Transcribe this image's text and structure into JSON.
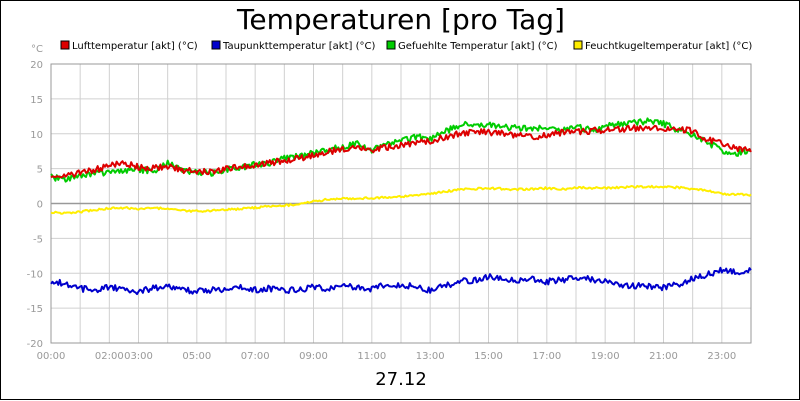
{
  "chart_data": {
    "type": "line",
    "title": "Temperaturen [pro Tag]",
    "ylabel": "°C",
    "xlabel": "27.12",
    "ylim": [
      -20,
      20
    ],
    "xlim": [
      0,
      24
    ],
    "y_ticks": [
      "20",
      "15",
      "10",
      "5",
      "0",
      "-5",
      "-10",
      "-15",
      "-20"
    ],
    "y_tick_values": [
      20,
      15,
      10,
      5,
      0,
      -5,
      -10,
      -15,
      -20
    ],
    "x_ticks": [
      "00:00",
      "02:00",
      "03:00",
      "05:00",
      "07:00",
      "09:00",
      "11:00",
      "13:00",
      "15:00",
      "17:00",
      "19:00",
      "21:00",
      "23:00"
    ],
    "x_tick_hours": [
      0,
      2,
      3,
      5,
      7,
      9,
      11,
      13,
      15,
      17,
      19,
      21,
      23
    ],
    "grid": true,
    "legend_position": "top",
    "series": [
      {
        "name": "Lufttemperatur [akt] (°C)",
        "color": "#dd0000",
        "x": [
          0,
          0.5,
          1,
          1.5,
          2,
          2.5,
          3,
          3.5,
          4,
          4.5,
          5,
          5.5,
          6,
          6.5,
          7,
          7.5,
          8,
          8.5,
          9,
          9.5,
          10,
          10.5,
          11,
          11.5,
          12,
          12.5,
          13,
          13.5,
          14,
          14.5,
          15,
          15.5,
          16,
          16.5,
          17,
          17.5,
          18,
          18.5,
          19,
          19.5,
          20,
          20.5,
          21,
          21.5,
          22,
          22.5,
          23,
          23.5,
          24
        ],
        "values": [
          4.2,
          3.9,
          4.4,
          4.8,
          5.5,
          5.8,
          5.2,
          5.0,
          5.3,
          4.8,
          4.7,
          4.6,
          5.0,
          5.3,
          5.6,
          5.8,
          6.2,
          6.5,
          6.9,
          7.4,
          7.8,
          8.0,
          7.7,
          8.0,
          8.4,
          8.6,
          9.0,
          9.5,
          10.0,
          10.3,
          10.2,
          10.0,
          9.8,
          9.6,
          9.8,
          10.2,
          10.3,
          10.4,
          10.6,
          10.6,
          10.8,
          10.9,
          10.8,
          10.6,
          10.4,
          9.2,
          8.6,
          8.0,
          7.6
        ]
      },
      {
        "name": "Taupunkttemperatur [akt] (°C)",
        "color": "#0000cc",
        "x": [
          0,
          0.5,
          1,
          1.5,
          2,
          2.5,
          3,
          3.5,
          4,
          4.5,
          5,
          5.5,
          6,
          6.5,
          7,
          7.5,
          8,
          8.5,
          9,
          9.5,
          10,
          10.5,
          11,
          11.5,
          12,
          12.5,
          13,
          13.5,
          14,
          14.5,
          15,
          15.5,
          16,
          16.5,
          17,
          17.5,
          18,
          18.5,
          19,
          19.5,
          20,
          20.5,
          21,
          21.5,
          22,
          22.5,
          23,
          23.5,
          24
        ],
        "values": [
          -11.2,
          -11.5,
          -12.2,
          -12.4,
          -12.0,
          -12.3,
          -12.6,
          -12.2,
          -11.8,
          -12.3,
          -12.6,
          -12.4,
          -12.2,
          -12.0,
          -12.4,
          -12.2,
          -12.6,
          -12.3,
          -12.0,
          -12.2,
          -11.8,
          -12.0,
          -12.2,
          -11.7,
          -11.6,
          -11.9,
          -12.4,
          -11.8,
          -11.2,
          -11.0,
          -10.5,
          -10.8,
          -11.0,
          -10.8,
          -11.2,
          -11.0,
          -10.6,
          -10.8,
          -11.2,
          -11.6,
          -11.8,
          -11.9,
          -12.0,
          -11.6,
          -10.8,
          -10.2,
          -9.6,
          -9.8,
          -9.6
        ]
      },
      {
        "name": "Gefuehlte Temperatur [akt] (°C)",
        "color": "#00cc00",
        "x": [
          0,
          0.5,
          1,
          1.5,
          2,
          2.5,
          3,
          3.5,
          4,
          4.5,
          5,
          5.5,
          6,
          6.5,
          7,
          7.5,
          8,
          8.5,
          9,
          9.5,
          10,
          10.5,
          11,
          11.5,
          12,
          12.5,
          13,
          13.5,
          14,
          14.5,
          15,
          15.5,
          16,
          16.5,
          17,
          17.5,
          18,
          18.5,
          19,
          19.5,
          20,
          20.5,
          21,
          21.5,
          22,
          22.5,
          23,
          23.5,
          24
        ],
        "values": [
          3.8,
          3.4,
          4.0,
          4.3,
          4.5,
          4.8,
          4.9,
          4.6,
          5.8,
          4.8,
          4.4,
          4.4,
          4.9,
          5.1,
          5.6,
          5.8,
          6.5,
          6.7,
          7.2,
          7.6,
          8.2,
          8.5,
          7.6,
          8.6,
          8.9,
          9.6,
          9.3,
          10.2,
          11.3,
          11.5,
          11.2,
          11.0,
          10.8,
          10.8,
          10.7,
          10.4,
          11.0,
          10.5,
          11.0,
          11.4,
          11.6,
          11.8,
          11.4,
          10.6,
          9.8,
          8.8,
          7.6,
          7.2,
          7.8
        ]
      },
      {
        "name": "Feuchtkugeltemperatur [akt] (°C)",
        "color": "#ffee00",
        "x": [
          0,
          0.5,
          1,
          1.5,
          2,
          2.5,
          3,
          3.5,
          4,
          4.5,
          5,
          5.5,
          6,
          6.5,
          7,
          7.5,
          8,
          8.5,
          9,
          9.5,
          10,
          10.5,
          11,
          11.5,
          12,
          12.5,
          13,
          13.5,
          14,
          14.5,
          15,
          15.5,
          16,
          16.5,
          17,
          17.5,
          18,
          18.5,
          19,
          19.5,
          20,
          20.5,
          21,
          21.5,
          22,
          22.5,
          23,
          23.5,
          24
        ],
        "values": [
          -1.3,
          -1.4,
          -1.2,
          -0.9,
          -0.7,
          -0.6,
          -0.8,
          -0.6,
          -0.8,
          -1.0,
          -1.1,
          -1.0,
          -0.9,
          -0.8,
          -0.6,
          -0.4,
          -0.3,
          -0.1,
          0.3,
          0.6,
          0.7,
          0.7,
          0.8,
          0.9,
          1.0,
          1.2,
          1.4,
          1.7,
          2.0,
          2.1,
          2.2,
          2.1,
          2.0,
          2.1,
          2.2,
          2.0,
          2.3,
          2.2,
          2.2,
          2.3,
          2.4,
          2.4,
          2.4,
          2.3,
          2.1,
          1.8,
          1.4,
          1.3,
          1.2
        ]
      }
    ]
  }
}
